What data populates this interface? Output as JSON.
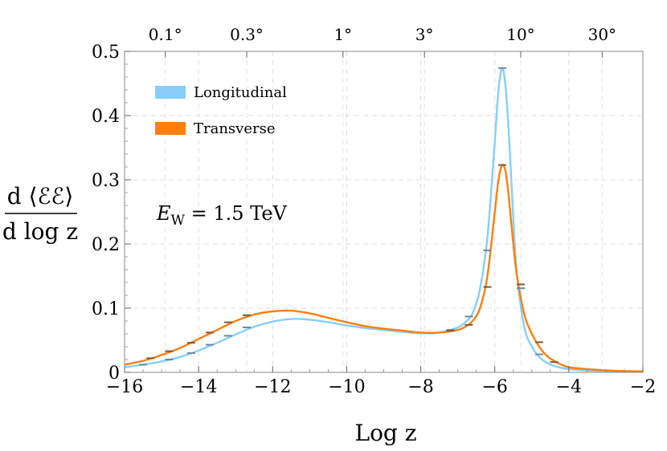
{
  "chart_data": {
    "type": "line",
    "xlabel": "Log z",
    "ylabel": {
      "numerator": "d ⟨ℰℰ⟩",
      "denominator": "d log z"
    },
    "xlim": [
      -16,
      -2
    ],
    "ylim": [
      0,
      0.5
    ],
    "grid": true,
    "legend_position": "top-left",
    "annotation": "E_W = 1.5 TeV",
    "x_ticks": [
      -16,
      -14,
      -12,
      -10,
      -8,
      -6,
      -4,
      -2
    ],
    "x_tick_labels": [
      "−16",
      "−14",
      "−12",
      "−10",
      "−8",
      "−6",
      "−4",
      "−2"
    ],
    "y_ticks": [
      0,
      0.1,
      0.2,
      0.3,
      0.4,
      0.5
    ],
    "y_tick_labels": [
      "0",
      "0.1",
      "0.2",
      "0.3",
      "0.4",
      "0.5"
    ],
    "top_axis": {
      "values": [
        -14.9,
        -12.7,
        -10.1,
        -7.9,
        -5.3,
        -3.1
      ],
      "labels": [
        "0.1°",
        "0.3°",
        "1°",
        "3°",
        "10°",
        "30°"
      ]
    },
    "series": [
      {
        "name": "Longitudinal",
        "color": "#87cefa",
        "x": [
          -16,
          -15.5,
          -15,
          -14.5,
          -14,
          -13.5,
          -13,
          -12.5,
          -12,
          -11.5,
          -11,
          -10.5,
          -10,
          -9.5,
          -9,
          -8.5,
          -8,
          -7.5,
          -7,
          -6.8,
          -6.6,
          -6.4,
          -6.2,
          -6.0,
          -5.9,
          -5.8,
          -5.7,
          -5.6,
          -5.5,
          -5.4,
          -5.2,
          -5.0,
          -4.8,
          -4.6,
          -4.4,
          -4.2,
          -4.0,
          -3.5,
          -3.0,
          -2.5,
          -2.0
        ],
        "y": [
          0.008,
          0.012,
          0.017,
          0.024,
          0.034,
          0.046,
          0.059,
          0.071,
          0.079,
          0.083,
          0.082,
          0.078,
          0.073,
          0.069,
          0.066,
          0.063,
          0.061,
          0.062,
          0.07,
          0.078,
          0.092,
          0.13,
          0.21,
          0.36,
          0.44,
          0.474,
          0.44,
          0.35,
          0.24,
          0.15,
          0.07,
          0.04,
          0.024,
          0.015,
          0.01,
          0.007,
          0.005,
          0.003,
          0.002,
          0.0015,
          0.001
        ]
      },
      {
        "name": "Transverse",
        "color": "#ff7f0e",
        "x": [
          -16,
          -15.5,
          -15,
          -14.5,
          -14,
          -13.5,
          -13,
          -12.5,
          -12,
          -11.5,
          -11,
          -10.5,
          -10,
          -9.5,
          -9,
          -8.5,
          -8,
          -7.5,
          -7,
          -6.8,
          -6.6,
          -6.4,
          -6.2,
          -6.0,
          -5.9,
          -5.8,
          -5.7,
          -5.6,
          -5.5,
          -5.4,
          -5.2,
          -5.0,
          -4.8,
          -4.6,
          -4.4,
          -4.2,
          -4.0,
          -3.5,
          -3.0,
          -2.5,
          -2.0
        ],
        "y": [
          0.012,
          0.018,
          0.027,
          0.038,
          0.052,
          0.066,
          0.08,
          0.09,
          0.095,
          0.096,
          0.092,
          0.085,
          0.078,
          0.072,
          0.068,
          0.065,
          0.062,
          0.062,
          0.066,
          0.071,
          0.08,
          0.1,
          0.15,
          0.25,
          0.3,
          0.323,
          0.31,
          0.26,
          0.2,
          0.15,
          0.09,
          0.06,
          0.04,
          0.026,
          0.018,
          0.012,
          0.008,
          0.005,
          0.003,
          0.002,
          0.0015
        ]
      }
    ],
    "error_markers": [
      {
        "series": "Longitudinal",
        "color": "#6b8aa3",
        "x": [
          -15.5,
          -14.8,
          -14.2,
          -13.7,
          -13.2,
          -12.7,
          -7.2,
          -6.7,
          -6.2,
          -5.8,
          -5.3,
          -4.8
        ],
        "y": [
          0.012,
          0.02,
          0.03,
          0.043,
          0.057,
          0.07,
          0.066,
          0.087,
          0.19,
          0.474,
          0.131,
          0.028
        ]
      },
      {
        "series": "Transverse",
        "color": "#7a5a3a",
        "x": [
          -15.3,
          -14.8,
          -14.2,
          -13.7,
          -13.2,
          -12.7,
          -7.2,
          -6.7,
          -6.2,
          -5.8,
          -5.3,
          -4.8,
          -4.4
        ],
        "y": [
          0.022,
          0.033,
          0.046,
          0.062,
          0.078,
          0.089,
          0.065,
          0.074,
          0.133,
          0.323,
          0.137,
          0.047,
          0.016
        ]
      }
    ]
  }
}
